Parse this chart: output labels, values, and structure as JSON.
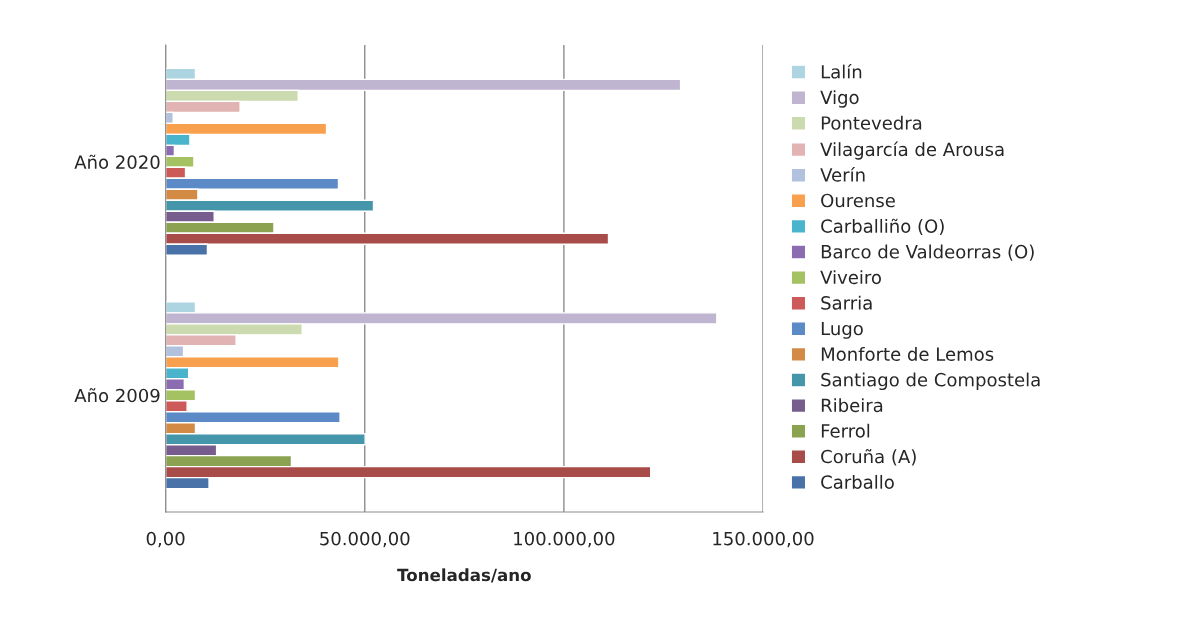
{
  "chart_data": {
    "type": "bar",
    "orientation": "horizontal",
    "xlabel": "Toneladas/ano",
    "categories": [
      "Año 2020",
      "Año 2009"
    ],
    "series": [
      {
        "name": "Lalín",
        "color": "#add5e1",
        "values": [
          7500,
          7500
        ]
      },
      {
        "name": "Vigo",
        "color": "#bfb5d0",
        "values": [
          129300,
          138400
        ]
      },
      {
        "name": "Pontevedra",
        "color": "#ccdab0",
        "values": [
          33300,
          34300
        ]
      },
      {
        "name": "Vilagarcía de Arousa",
        "color": "#e1b4b3",
        "values": [
          18700,
          17700
        ]
      },
      {
        "name": "Verín",
        "color": "#b1c1de",
        "values": [
          1900,
          4500
        ]
      },
      {
        "name": "Ourense",
        "color": "#f9a04f",
        "values": [
          40400,
          43500
        ]
      },
      {
        "name": "Carballiño (O)",
        "color": "#4bb4cd",
        "values": [
          6100,
          5800
        ]
      },
      {
        "name": "Barco de Valdeorras (O)",
        "color": "#8c6cb0",
        "values": [
          2200,
          4700
        ]
      },
      {
        "name": "Viveiro",
        "color": "#a5c262",
        "values": [
          7100,
          7500
        ]
      },
      {
        "name": "Sarria",
        "color": "#cc5a58",
        "values": [
          5000,
          5400
        ]
      },
      {
        "name": "Lugo",
        "color": "#5b8ac6",
        "values": [
          43400,
          43800
        ]
      },
      {
        "name": "Monforte de Lemos",
        "color": "#d38a44",
        "values": [
          8100,
          7500
        ]
      },
      {
        "name": "Santiago de Compostela",
        "color": "#4596aa",
        "values": [
          52200,
          50100
        ]
      },
      {
        "name": "Ribeira",
        "color": "#775c8e",
        "values": [
          12200,
          12800
        ]
      },
      {
        "name": "Ferrol",
        "color": "#8ba351",
        "values": [
          27200,
          31600
        ]
      },
      {
        "name": "Coruña (A)",
        "color": "#a84c49",
        "values": [
          111200,
          121800
        ]
      },
      {
        "name": "Carballo",
        "color": "#4872a8",
        "values": [
          10500,
          10900
        ]
      }
    ],
    "xlim": [
      0,
      150000
    ],
    "xticks": [
      {
        "value": 0,
        "label": "0,00"
      },
      {
        "value": 50000,
        "label": "50.000,00"
      },
      {
        "value": 100000,
        "label": "100.000,00"
      },
      {
        "value": 150000,
        "label": "150.000,00"
      }
    ],
    "grid": "x",
    "legend": "right"
  }
}
